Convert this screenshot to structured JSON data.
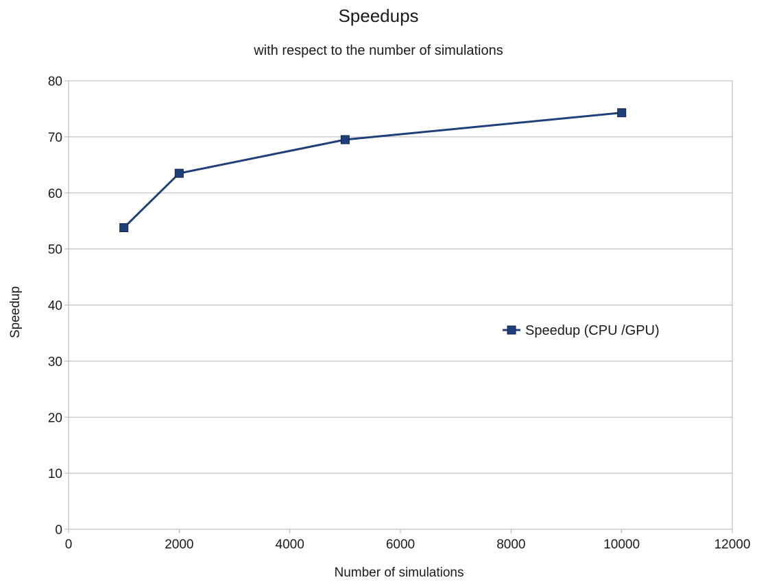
{
  "chart_data": {
    "type": "line",
    "title": "Speedups",
    "subtitle": "with respect to the number of simulations",
    "xlabel": "Number of simulations",
    "ylabel": "Speedup",
    "xlim": [
      0,
      12000
    ],
    "ylim": [
      0,
      80
    ],
    "x_ticks": [
      0,
      2000,
      4000,
      6000,
      8000,
      10000,
      12000
    ],
    "y_ticks": [
      0,
      10,
      20,
      30,
      40,
      50,
      60,
      70,
      80
    ],
    "grid": "horizontal",
    "legend_position": "center-right",
    "series": [
      {
        "name": "Speedup (CPU /GPU)",
        "color": "#1f3f78",
        "marker": "square",
        "x": [
          1000,
          2000,
          5000,
          10000
        ],
        "y": [
          53.8,
          63.5,
          69.5,
          74.3
        ]
      }
    ]
  }
}
